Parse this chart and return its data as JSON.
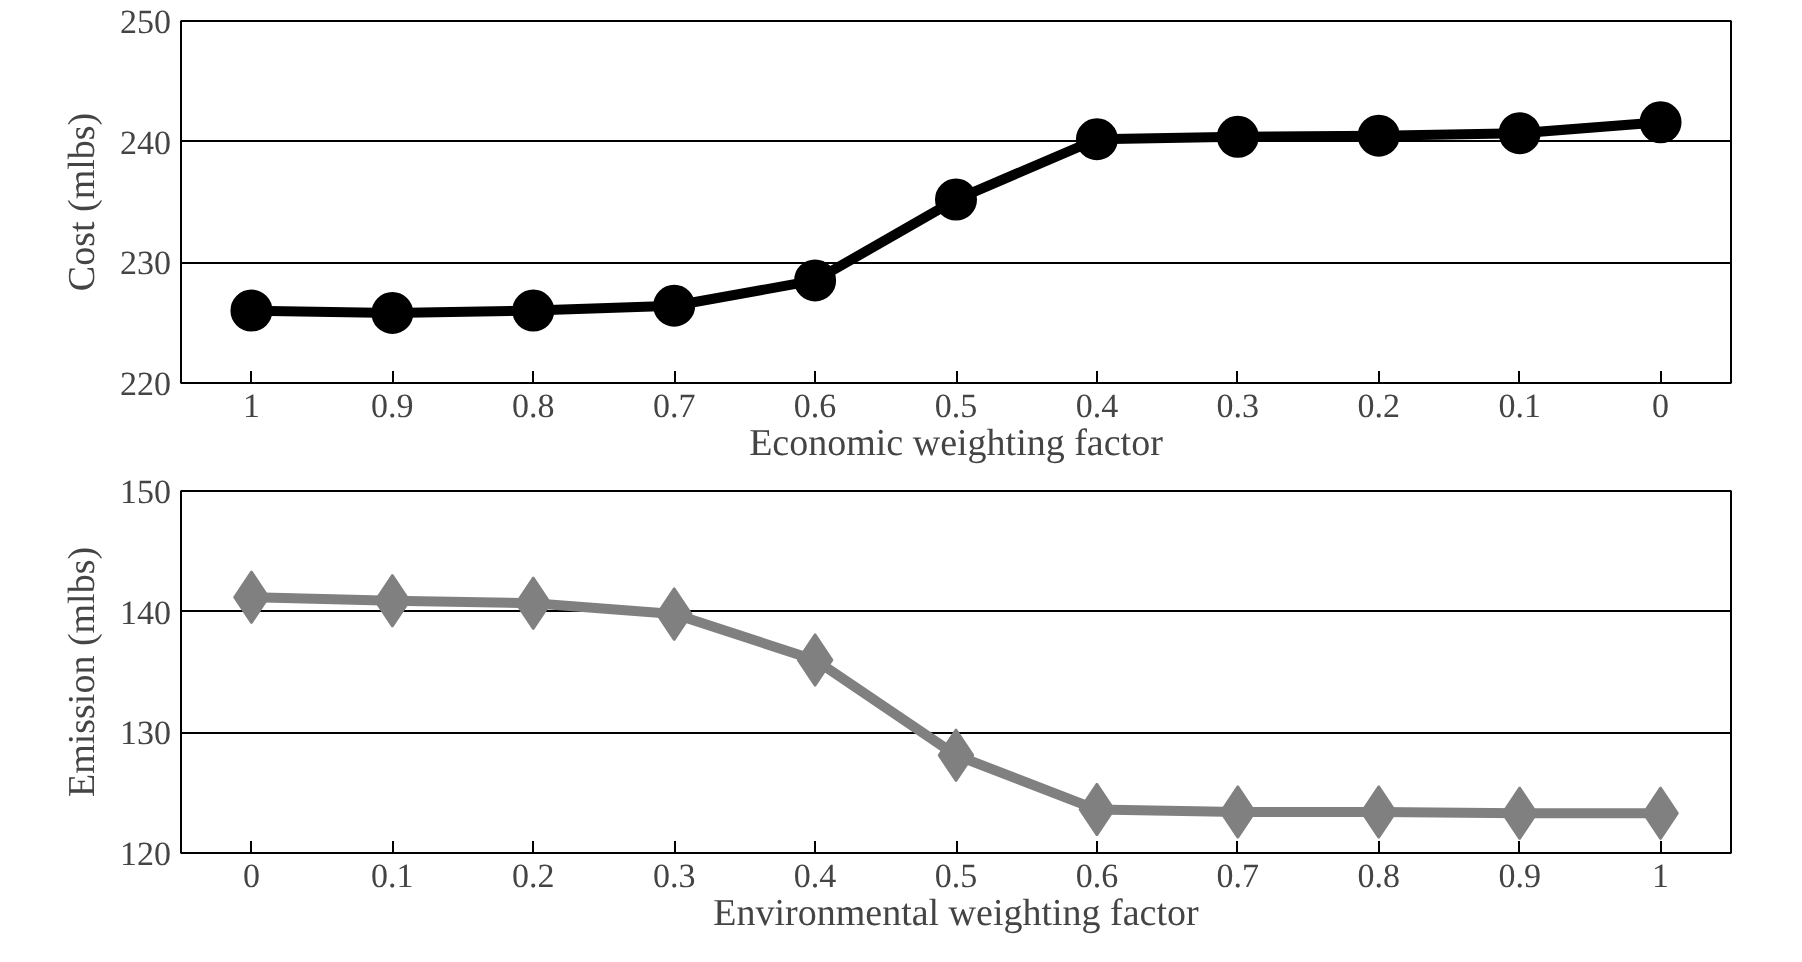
{
  "chart_data": [
    {
      "type": "line",
      "xlabel": "Economic weighting factor",
      "ylabel": "Cost (mlbs)",
      "x": [
        1,
        0.9,
        0.8,
        0.7,
        0.6,
        0.5,
        0.4,
        0.3,
        0.2,
        0.1,
        0
      ],
      "xlim": [
        1.05,
        -0.05
      ],
      "xticks": [
        1,
        0.9,
        0.8,
        0.7,
        0.6,
        0.5,
        0.4,
        0.3,
        0.2,
        0.1,
        0
      ],
      "ylim": [
        220,
        250
      ],
      "yticks": [
        220,
        230,
        240,
        250
      ],
      "grid": "y",
      "marker": "circle",
      "line_style": "solid",
      "series": [
        {
          "color": "#000000",
          "values": [
            226.0,
            225.8,
            226.0,
            226.4,
            228.5,
            235.2,
            240.2,
            240.4,
            240.5,
            240.7,
            241.6
          ]
        }
      ]
    },
    {
      "type": "line",
      "xlabel": "Environmental weighting factor",
      "ylabel": "Emission (mlbs)",
      "x": [
        0,
        0.1,
        0.2,
        0.3,
        0.4,
        0.5,
        0.6,
        0.7,
        0.8,
        0.9,
        1
      ],
      "xlim": [
        -0.05,
        1.05
      ],
      "xticks": [
        0,
        0.1,
        0.2,
        0.3,
        0.4,
        0.5,
        0.6,
        0.7,
        0.8,
        0.9,
        1
      ],
      "ylim": [
        120,
        150
      ],
      "yticks": [
        120,
        130,
        140,
        150
      ],
      "grid": "y",
      "marker": "diamond",
      "line_style": "solid",
      "series": [
        {
          "color": "#808080",
          "values": [
            141.2,
            140.9,
            140.7,
            139.8,
            136.0,
            128.1,
            123.6,
            123.4,
            123.4,
            123.3,
            123.3
          ]
        }
      ]
    }
  ]
}
